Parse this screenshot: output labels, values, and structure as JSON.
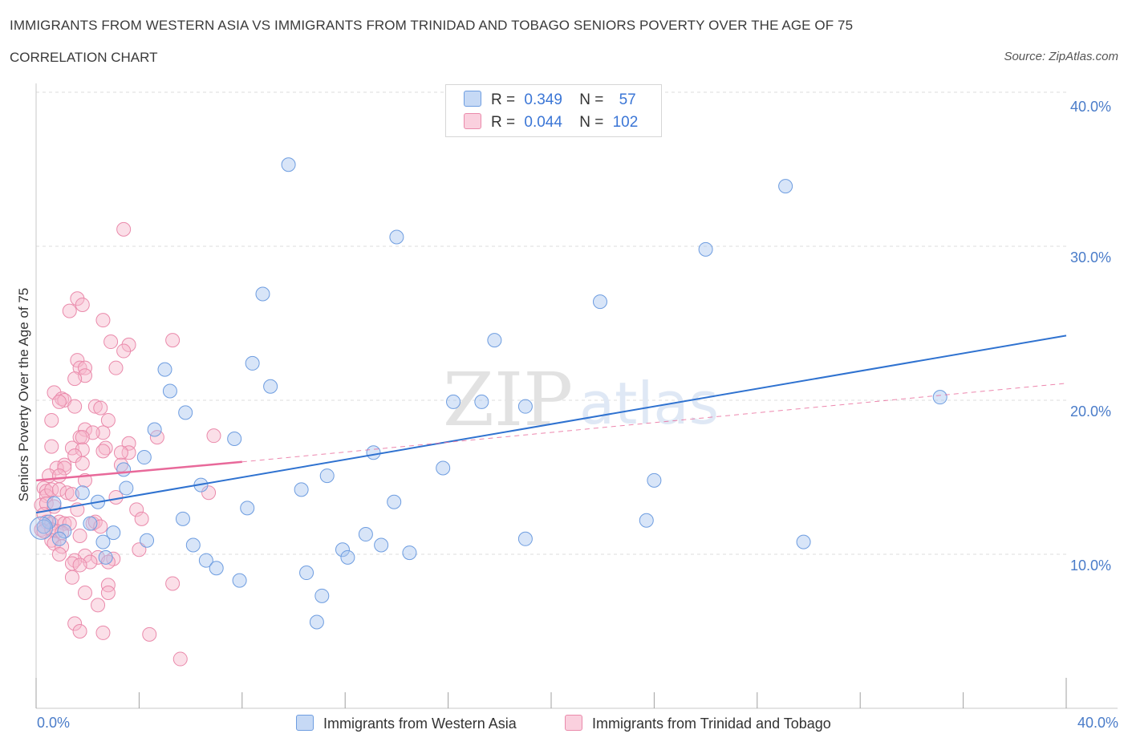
{
  "title": "IMMIGRANTS FROM WESTERN ASIA VS IMMIGRANTS FROM TRINIDAD AND TOBAGO SENIORS POVERTY OVER THE AGE OF 75",
  "subtitle": "CORRELATION CHART",
  "source": "Source: ZipAtlas.com",
  "watermark": {
    "zip": "ZIP",
    "atlas": "atlas"
  },
  "stats": [
    {
      "r_label": "R =",
      "r": "0.349",
      "n_label": "N =",
      "n": "57",
      "color": "#a9c6f0"
    },
    {
      "r_label": "R =",
      "r": "0.044",
      "n_label": "N =",
      "n": "102",
      "color": "#f6b8cc"
    }
  ],
  "colors": {
    "blue_fill": "#a9c6f0",
    "blue_stroke": "#6e9de0",
    "blue_line": "#2f72d0",
    "pink_fill": "#f6b8cc",
    "pink_stroke": "#ea8aab",
    "pink_line": "#e8699a",
    "accent_text": "#4a7cc9"
  },
  "chart_data": {
    "type": "scatter",
    "title": "IMMIGRANTS FROM WESTERN ASIA VS IMMIGRANTS FROM TRINIDAD AND TOBAGO SENIORS POVERTY OVER THE AGE OF 75",
    "xlabel": "",
    "ylabel": "Seniors Poverty Over the Age of 75",
    "xlim": [
      0,
      40
    ],
    "ylim": [
      0,
      41
    ],
    "x_tick_labels": [
      "0.0%",
      "40.0%"
    ],
    "y_ticks": [
      10,
      20,
      30,
      40
    ],
    "y_tick_labels": [
      "10.0%",
      "20.0%",
      "30.0%",
      "40.0%"
    ],
    "grid": true,
    "legend_position": "bottom-center",
    "series": [
      {
        "name": "Immigrants from Western Asia",
        "R": 0.349,
        "N": 57,
        "trend": {
          "x0": 0,
          "y0": 12.7,
          "x1": 40,
          "y1": 24.2
        },
        "points": [
          [
            9.8,
            35.3
          ],
          [
            14.0,
            30.6
          ],
          [
            29.1,
            33.9
          ],
          [
            26.0,
            29.8
          ],
          [
            8.8,
            26.9
          ],
          [
            21.9,
            26.4
          ],
          [
            17.8,
            23.9
          ],
          [
            8.4,
            22.4
          ],
          [
            5.0,
            22.0
          ],
          [
            9.1,
            20.9
          ],
          [
            5.2,
            20.6
          ],
          [
            5.8,
            19.2
          ],
          [
            16.2,
            19.9
          ],
          [
            17.3,
            19.9
          ],
          [
            19.0,
            19.6
          ],
          [
            35.1,
            20.2
          ],
          [
            4.6,
            18.1
          ],
          [
            7.7,
            17.5
          ],
          [
            4.2,
            16.3
          ],
          [
            13.1,
            16.6
          ],
          [
            15.8,
            15.6
          ],
          [
            3.4,
            15.5
          ],
          [
            11.3,
            15.1
          ],
          [
            24.0,
            14.8
          ],
          [
            3.5,
            14.3
          ],
          [
            6.4,
            14.5
          ],
          [
            10.3,
            14.2
          ],
          [
            1.8,
            14.0
          ],
          [
            2.4,
            13.4
          ],
          [
            13.9,
            13.4
          ],
          [
            0.7,
            13.3
          ],
          [
            8.2,
            13.0
          ],
          [
            5.7,
            12.3
          ],
          [
            23.7,
            12.2
          ],
          [
            0.5,
            12.1
          ],
          [
            2.1,
            12.0
          ],
          [
            0.3,
            11.8
          ],
          [
            1.1,
            11.5
          ],
          [
            3.0,
            11.4
          ],
          [
            12.8,
            11.3
          ],
          [
            19.0,
            11.0
          ],
          [
            0.9,
            11.0
          ],
          [
            2.6,
            10.8
          ],
          [
            4.3,
            10.9
          ],
          [
            29.8,
            10.8
          ],
          [
            13.4,
            10.6
          ],
          [
            6.1,
            10.6
          ],
          [
            11.9,
            10.3
          ],
          [
            14.5,
            10.1
          ],
          [
            2.7,
            9.8
          ],
          [
            12.1,
            9.8
          ],
          [
            6.6,
            9.6
          ],
          [
            7.0,
            9.1
          ],
          [
            10.5,
            8.8
          ],
          [
            7.9,
            8.3
          ],
          [
            11.1,
            7.3
          ],
          [
            10.9,
            5.6
          ]
        ]
      },
      {
        "name": "Immigrants from Trinidad and Tobago",
        "R": 0.044,
        "N": 102,
        "trend": {
          "x0": 0,
          "y0": 14.8,
          "x1": 8,
          "y1": 16.0,
          "dash_to_x": 40,
          "dash_to_y": 21.1
        },
        "points": [
          [
            3.4,
            31.1
          ],
          [
            1.6,
            26.6
          ],
          [
            1.8,
            26.2
          ],
          [
            1.3,
            25.8
          ],
          [
            2.6,
            25.2
          ],
          [
            5.3,
            23.9
          ],
          [
            2.9,
            23.8
          ],
          [
            3.6,
            23.6
          ],
          [
            3.4,
            23.2
          ],
          [
            1.6,
            22.6
          ],
          [
            1.7,
            22.1
          ],
          [
            1.9,
            22.1
          ],
          [
            3.1,
            22.1
          ],
          [
            1.9,
            21.6
          ],
          [
            1.5,
            21.4
          ],
          [
            0.7,
            20.5
          ],
          [
            1.0,
            20.1
          ],
          [
            1.1,
            20.0
          ],
          [
            0.9,
            19.9
          ],
          [
            1.5,
            19.6
          ],
          [
            2.3,
            19.6
          ],
          [
            2.5,
            19.5
          ],
          [
            0.6,
            18.7
          ],
          [
            2.8,
            18.7
          ],
          [
            1.9,
            18.1
          ],
          [
            2.6,
            17.9
          ],
          [
            2.2,
            17.9
          ],
          [
            1.7,
            17.6
          ],
          [
            1.8,
            17.6
          ],
          [
            6.9,
            17.7
          ],
          [
            4.7,
            17.6
          ],
          [
            0.6,
            17.0
          ],
          [
            3.6,
            17.2
          ],
          [
            1.4,
            16.9
          ],
          [
            1.8,
            16.8
          ],
          [
            2.7,
            16.9
          ],
          [
            2.6,
            16.7
          ],
          [
            1.5,
            16.4
          ],
          [
            3.6,
            16.6
          ],
          [
            3.3,
            16.6
          ],
          [
            1.1,
            15.8
          ],
          [
            1.8,
            15.9
          ],
          [
            0.8,
            15.6
          ],
          [
            1.1,
            15.6
          ],
          [
            3.3,
            15.8
          ],
          [
            0.5,
            15.1
          ],
          [
            0.9,
            15.1
          ],
          [
            1.9,
            14.8
          ],
          [
            0.3,
            14.3
          ],
          [
            0.4,
            14.1
          ],
          [
            0.4,
            13.8
          ],
          [
            0.6,
            14.2
          ],
          [
            0.9,
            14.2
          ],
          [
            1.2,
            14.0
          ],
          [
            1.4,
            13.9
          ],
          [
            6.7,
            14.0
          ],
          [
            3.1,
            13.7
          ],
          [
            0.2,
            13.2
          ],
          [
            0.4,
            13.3
          ],
          [
            0.7,
            13.1
          ],
          [
            1.6,
            12.9
          ],
          [
            3.9,
            12.9
          ],
          [
            0.3,
            12.6
          ],
          [
            0.4,
            12.1
          ],
          [
            0.6,
            12.0
          ],
          [
            0.9,
            12.1
          ],
          [
            1.1,
            12.0
          ],
          [
            1.3,
            12.0
          ],
          [
            2.2,
            12.0
          ],
          [
            2.3,
            12.1
          ],
          [
            4.1,
            12.3
          ],
          [
            2.5,
            11.8
          ],
          [
            0.2,
            11.6
          ],
          [
            0.3,
            11.5
          ],
          [
            0.6,
            11.6
          ],
          [
            0.8,
            11.5
          ],
          [
            1.0,
            11.4
          ],
          [
            1.7,
            11.2
          ],
          [
            0.6,
            10.9
          ],
          [
            0.7,
            10.7
          ],
          [
            1.0,
            10.5
          ],
          [
            4.0,
            10.3
          ],
          [
            0.9,
            10.0
          ],
          [
            1.9,
            9.9
          ],
          [
            2.4,
            9.8
          ],
          [
            3.0,
            9.7
          ],
          [
            1.5,
            9.6
          ],
          [
            2.1,
            9.5
          ],
          [
            1.4,
            9.4
          ],
          [
            2.8,
            9.5
          ],
          [
            1.7,
            9.3
          ],
          [
            1.4,
            8.5
          ],
          [
            2.8,
            8.0
          ],
          [
            5.3,
            8.1
          ],
          [
            1.9,
            7.5
          ],
          [
            2.8,
            7.5
          ],
          [
            2.4,
            6.7
          ],
          [
            1.5,
            5.5
          ],
          [
            1.7,
            5.0
          ],
          [
            2.6,
            4.9
          ],
          [
            4.4,
            4.8
          ],
          [
            5.6,
            3.2
          ]
        ]
      }
    ]
  }
}
